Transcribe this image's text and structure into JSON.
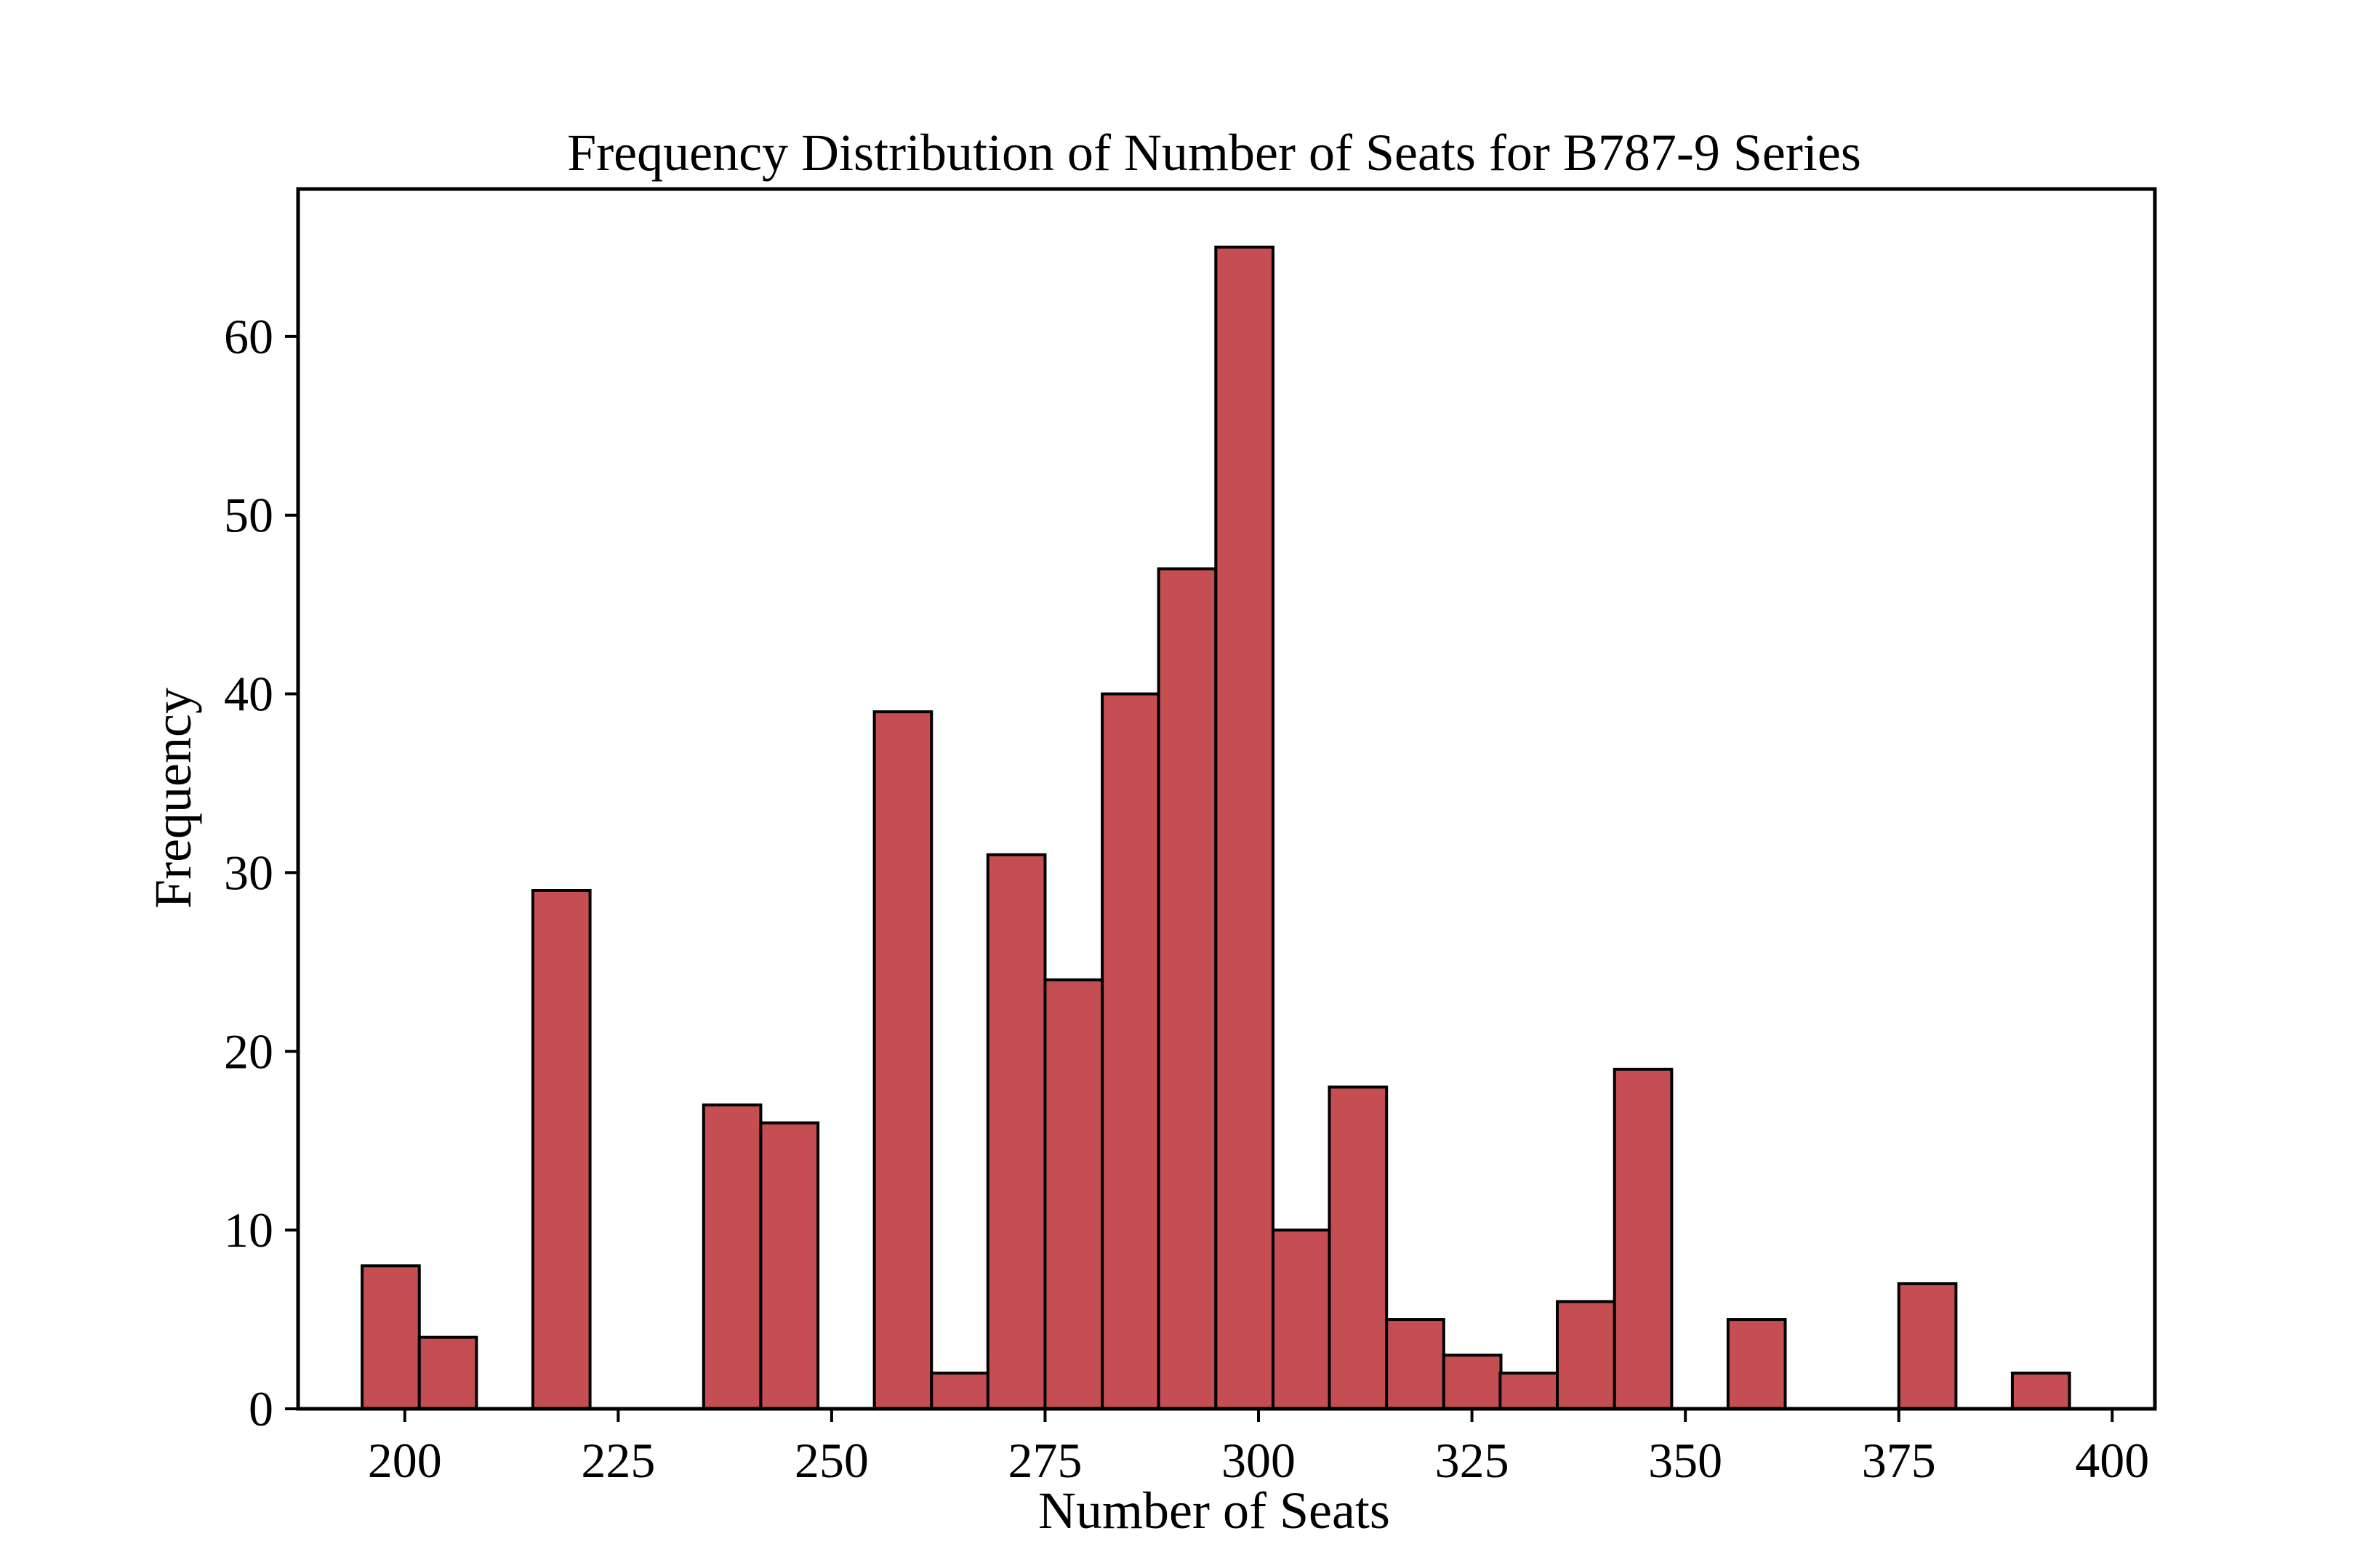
{
  "chart_data": {
    "type": "bar",
    "title": "Frequency Distribution of Number of Seats for B787-9 Series",
    "xlabel": "Number of Seats",
    "ylabel": "Frequency",
    "xlim": [
      187.5,
      405
    ],
    "ylim": [
      0,
      68.25
    ],
    "xticks": [
      200,
      225,
      250,
      275,
      300,
      325,
      350,
      375,
      400
    ],
    "yticks": [
      0,
      10,
      20,
      30,
      40,
      50,
      60
    ],
    "bin_width": 6.7,
    "bins": [
      {
        "start": 195.0,
        "value": 8
      },
      {
        "start": 201.7,
        "value": 4
      },
      {
        "start": 215.0,
        "value": 29
      },
      {
        "start": 235.0,
        "value": 17
      },
      {
        "start": 241.7,
        "value": 16
      },
      {
        "start": 255.0,
        "value": 39
      },
      {
        "start": 261.7,
        "value": 2
      },
      {
        "start": 268.3,
        "value": 31
      },
      {
        "start": 275.0,
        "value": 24
      },
      {
        "start": 281.7,
        "value": 40
      },
      {
        "start": 288.3,
        "value": 47
      },
      {
        "start": 295.0,
        "value": 65
      },
      {
        "start": 301.7,
        "value": 10
      },
      {
        "start": 308.3,
        "value": 18
      },
      {
        "start": 315.0,
        "value": 5
      },
      {
        "start": 321.7,
        "value": 3
      },
      {
        "start": 328.3,
        "value": 2
      },
      {
        "start": 335.0,
        "value": 6
      },
      {
        "start": 341.7,
        "value": 19
      },
      {
        "start": 355.0,
        "value": 5
      },
      {
        "start": 375.0,
        "value": 7
      },
      {
        "start": 388.3,
        "value": 2
      }
    ],
    "grid": false,
    "legend": false,
    "colors": {
      "bar_fill": "#c44e52",
      "bar_edge": "#000000",
      "axis": "#000000",
      "background": "#ffffff"
    }
  }
}
